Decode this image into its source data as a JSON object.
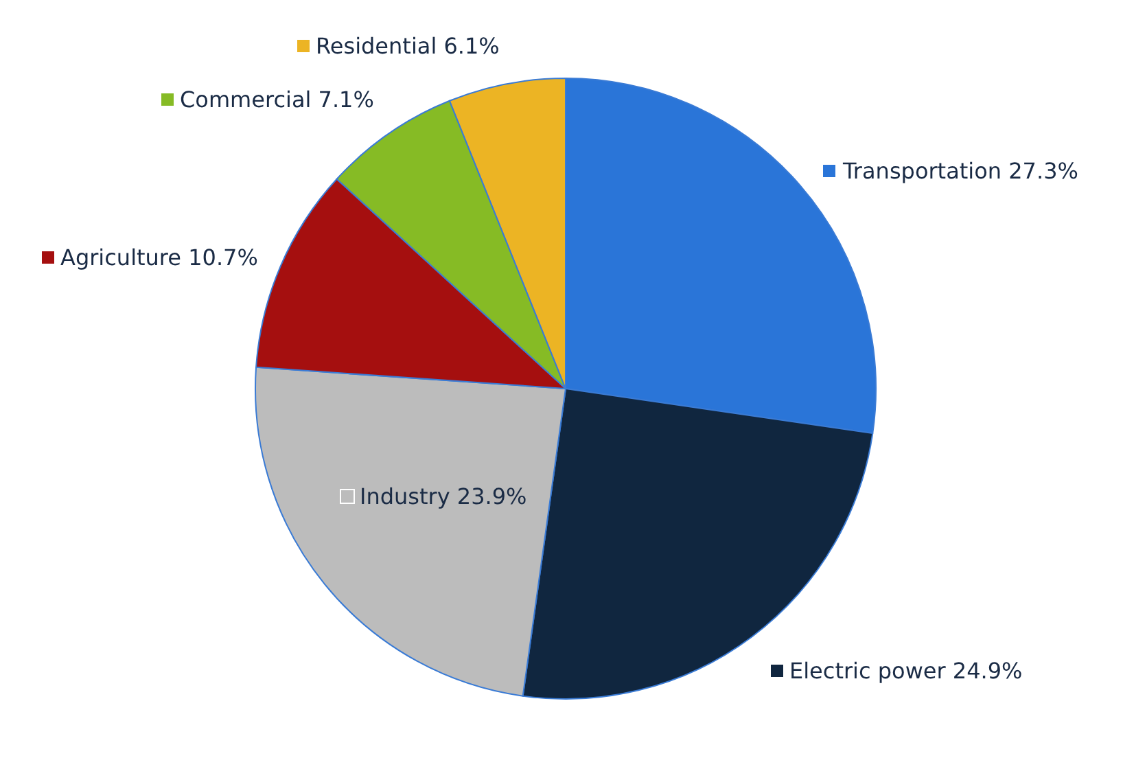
{
  "chart_data": {
    "type": "pie",
    "categories": [
      "Transportation",
      "Electric power",
      "Industry",
      "Agriculture",
      "Commercial",
      "Residential"
    ],
    "values": [
      27.3,
      24.9,
      23.9,
      10.7,
      7.1,
      6.1
    ],
    "value_labels": [
      "27.3%",
      "24.9%",
      "23.9%",
      "10.7%",
      "7.1%",
      "6.1%"
    ],
    "legend": "right",
    "colors": [
      "#2a75d8",
      "#10263f",
      "#bcbcbc",
      "#a50f0f",
      "#86bb25",
      "#ecb424"
    ]
  }
}
